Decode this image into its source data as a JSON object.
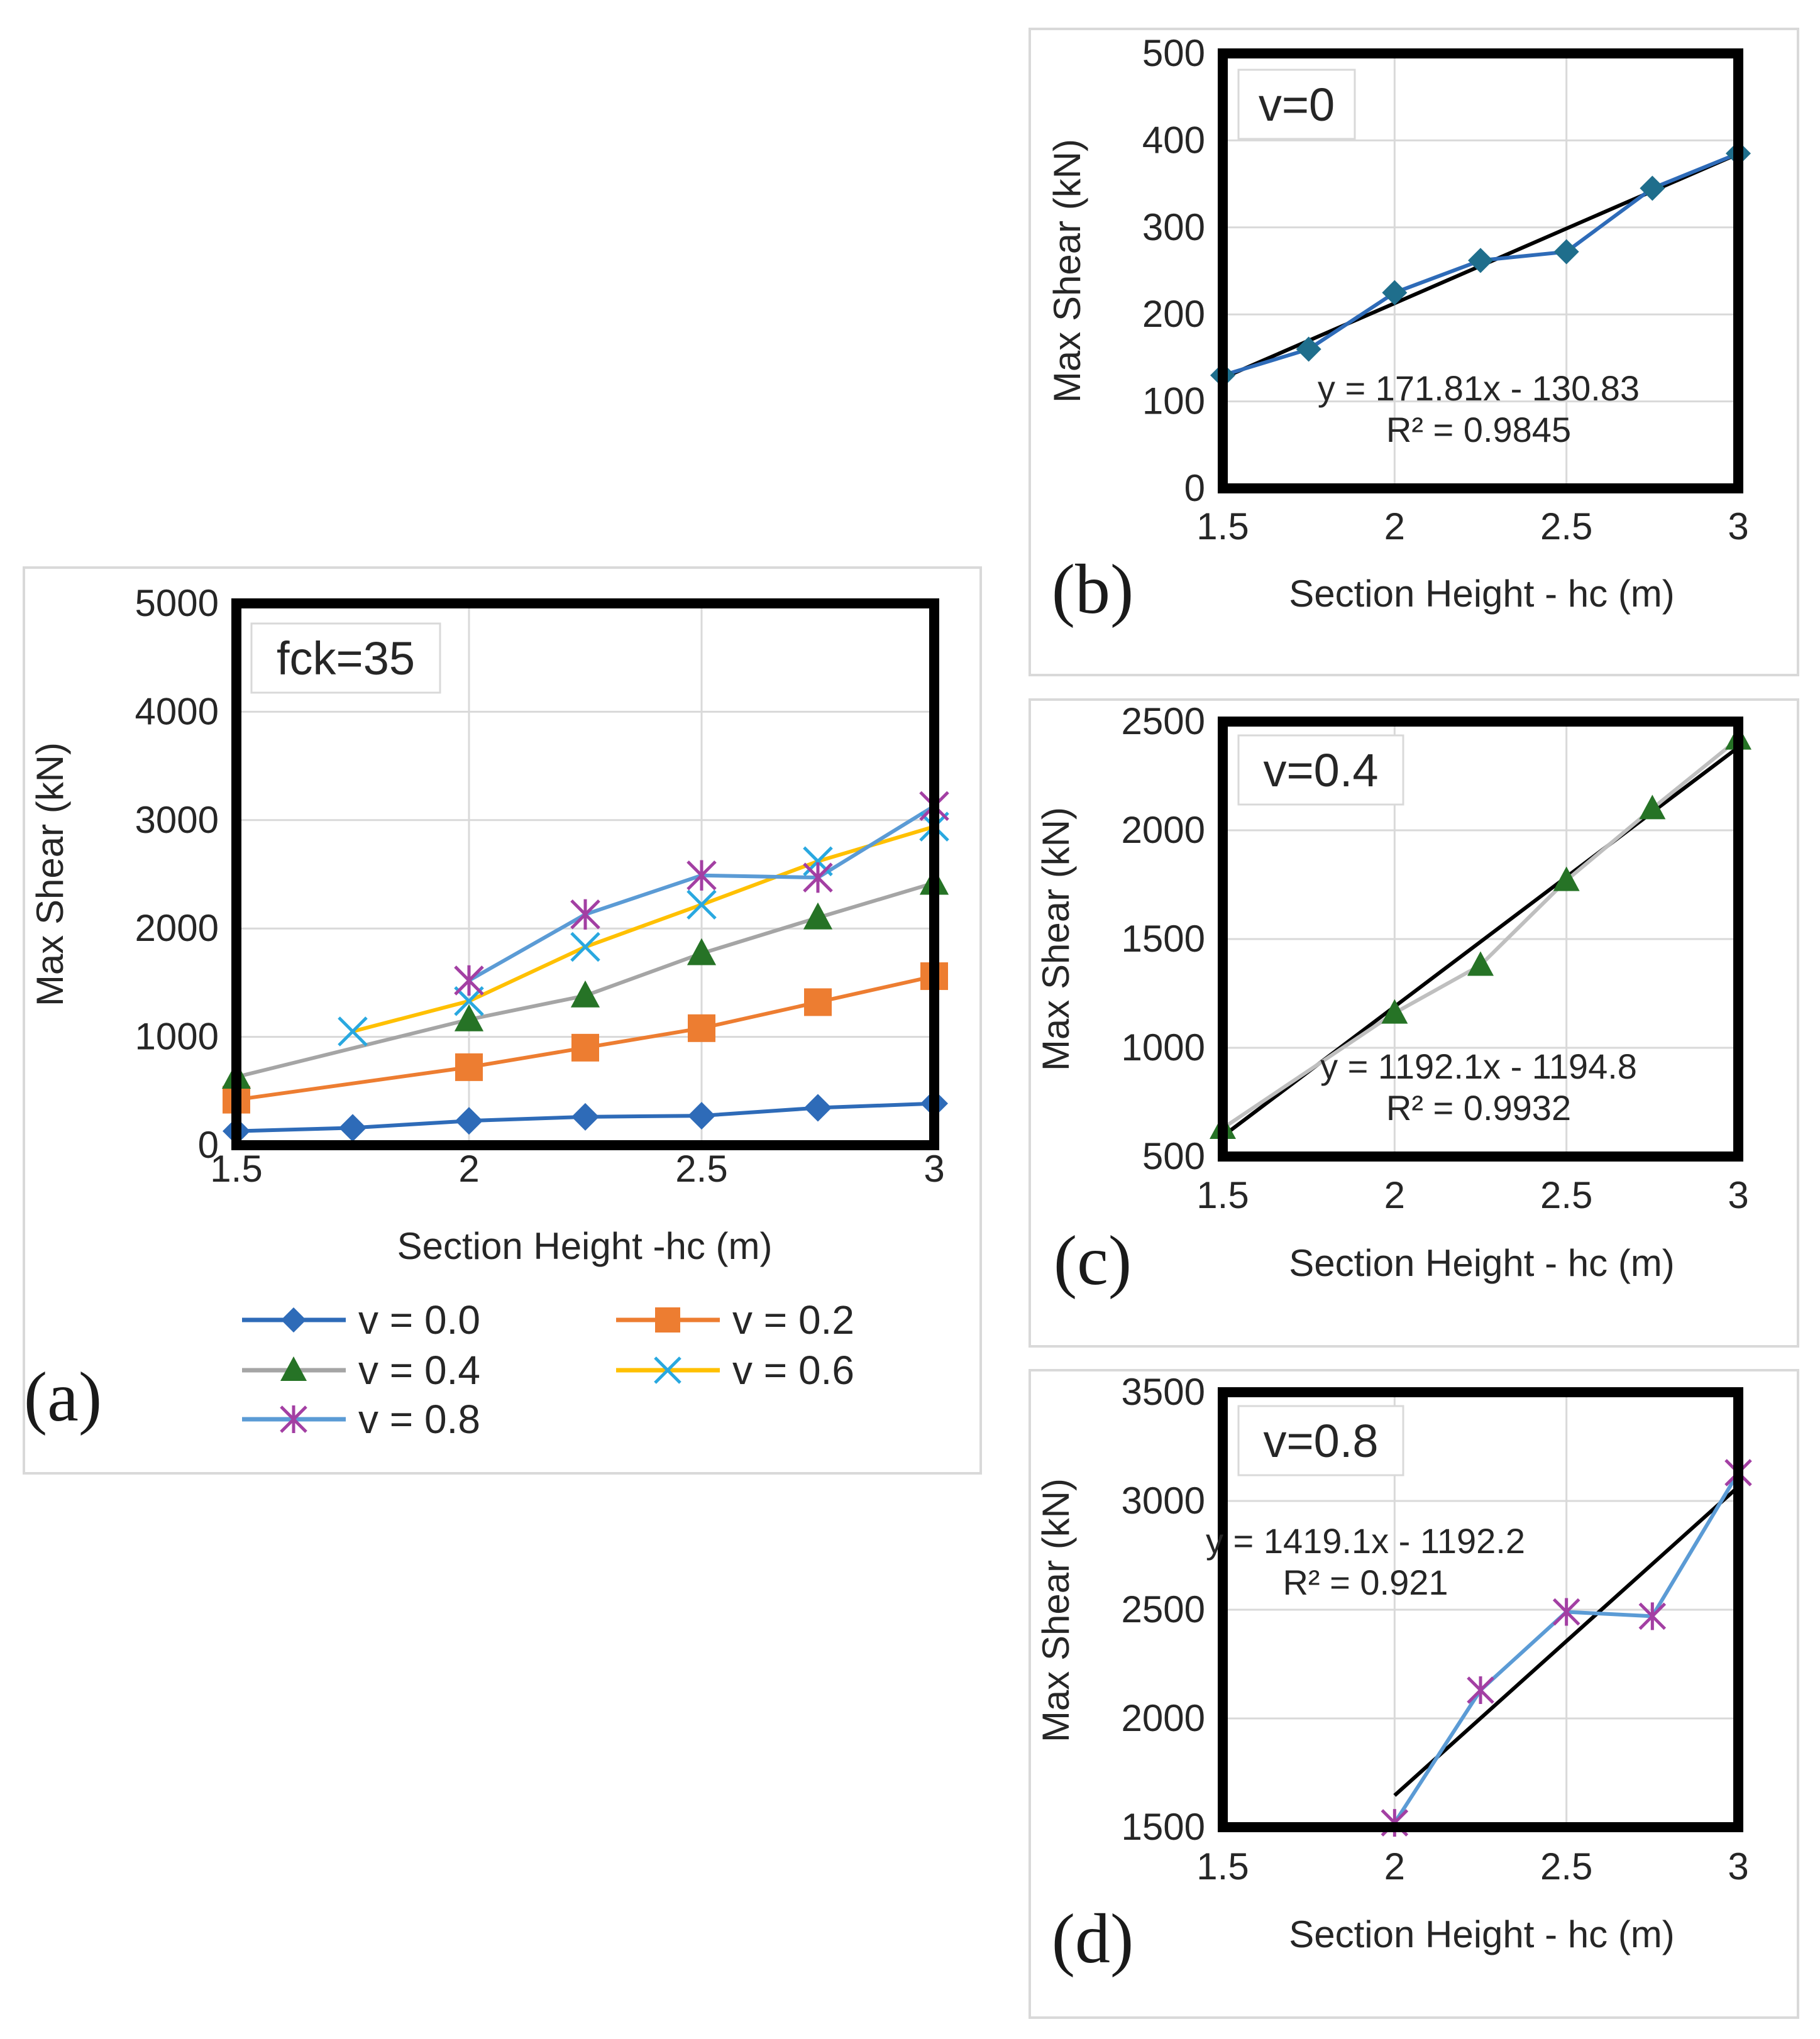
{
  "chart_data": [
    {
      "id": "a",
      "type": "line",
      "panel_label": "(a)",
      "annotation": "fck=35",
      "xlabel": "Section Height -hc (m)",
      "ylabel": "Max Shear (kN)",
      "xlim": [
        1.5,
        3
      ],
      "ylim": [
        0,
        5000
      ],
      "xticks": [
        1.5,
        2,
        2.5,
        3
      ],
      "yticks": [
        0,
        1000,
        2000,
        3000,
        4000,
        5000
      ],
      "xtick_labels": [
        "1.5",
        "2",
        "2.5",
        "3"
      ],
      "ytick_labels": [
        "0",
        "1000",
        "2000",
        "3000",
        "4000",
        "5000"
      ],
      "grid": true,
      "legend_position": "bottom",
      "series": [
        {
          "name": "v = 0.0",
          "color": "#2E6BB8",
          "marker": "diamond",
          "x": [
            1.5,
            1.75,
            2,
            2.25,
            2.5,
            2.75,
            3
          ],
          "values": [
            130,
            160,
            225,
            262,
            272,
            345,
            385
          ]
        },
        {
          "name": "v = 0.2",
          "color": "#ED7D31",
          "marker": "square",
          "x": [
            1.5,
            2,
            2.25,
            2.5,
            2.75,
            3
          ],
          "values": [
            420,
            720,
            900,
            1080,
            1320,
            1560
          ]
        },
        {
          "name": "v = 0.4",
          "color": "#A5A5A5",
          "marker": "triangle",
          "marker_color": "#267326",
          "x": [
            1.5,
            2,
            2.25,
            2.5,
            2.75,
            3
          ],
          "values": [
            630,
            1160,
            1380,
            1770,
            2100,
            2420
          ]
        },
        {
          "name": "v = 0.6",
          "color": "#FFC000",
          "marker": "x",
          "marker_color": "#29A8E0",
          "x": [
            1.75,
            2,
            2.25,
            2.5,
            2.75,
            3
          ],
          "values": [
            1050,
            1330,
            1830,
            2220,
            2620,
            2940
          ]
        },
        {
          "name": "v = 0.8",
          "color": "#5B9BD5",
          "marker": "star",
          "marker_color": "#A33FA3",
          "x": [
            2,
            2.25,
            2.5,
            2.75,
            3
          ],
          "values": [
            1520,
            2130,
            2490,
            2470,
            3130
          ]
        }
      ]
    },
    {
      "id": "b",
      "type": "line",
      "panel_label": "(b)",
      "annotation": "v=0",
      "xlabel": "Section Height - hc (m)",
      "ylabel": "Max Shear (kN)",
      "xlim": [
        1.5,
        3
      ],
      "ylim": [
        0,
        500
      ],
      "xticks": [
        1.5,
        2,
        2.5,
        3
      ],
      "yticks": [
        0,
        100,
        200,
        300,
        400,
        500
      ],
      "xtick_labels": [
        "1.5",
        "2",
        "2.5",
        "3"
      ],
      "ytick_labels": [
        "0",
        "100",
        "200",
        "300",
        "400",
        "500"
      ],
      "grid": true,
      "series": [
        {
          "name": "v = 0.0",
          "color": "#2E6BB8",
          "marker": "diamond",
          "marker_color": "#1F6E8C",
          "x": [
            1.5,
            1.75,
            2,
            2.25,
            2.5,
            2.75,
            3
          ],
          "values": [
            130,
            160,
            225,
            262,
            272,
            345,
            385
          ]
        }
      ],
      "trendline": {
        "slope": 171.81,
        "intercept": -130.83,
        "x_range": [
          1.5,
          3
        ],
        "color": "#000000"
      },
      "equation": "y = 171.81x - 130.83",
      "r_squared": "R² = 0.9845"
    },
    {
      "id": "c",
      "type": "line",
      "panel_label": "(c)",
      "annotation": "v=0.4",
      "xlabel": "Section Height - hc (m)",
      "ylabel": "Max Shear (kN)",
      "xlim": [
        1.5,
        3
      ],
      "ylim": [
        500,
        2500
      ],
      "xticks": [
        1.5,
        2,
        2.5,
        3
      ],
      "yticks": [
        500,
        1000,
        1500,
        2000,
        2500
      ],
      "xtick_labels": [
        "1.5",
        "2",
        "2.5",
        "3"
      ],
      "ytick_labels": [
        "500",
        "1000",
        "1500",
        "2000",
        "2500"
      ],
      "grid": true,
      "series": [
        {
          "name": "v = 0.4",
          "color": "#BFBFBF",
          "marker": "triangle",
          "marker_color": "#267326",
          "x": [
            1.5,
            2,
            2.25,
            2.5,
            2.75,
            3
          ],
          "values": [
            630,
            1160,
            1380,
            1770,
            2100,
            2420
          ]
        }
      ],
      "trendline": {
        "slope": 1192.1,
        "intercept": -1194.8,
        "x_range": [
          1.5,
          3
        ],
        "color": "#000000"
      },
      "equation": "y = 1192.1x - 1194.8",
      "r_squared": "R² = 0.9932"
    },
    {
      "id": "d",
      "type": "line",
      "panel_label": "(d)",
      "annotation": "v=0.8",
      "xlabel": "Section Height - hc (m)",
      "ylabel": "Max Shear (kN)",
      "xlim": [
        1.5,
        3
      ],
      "ylim": [
        1500,
        3500
      ],
      "xticks": [
        1.5,
        2,
        2.5,
        3
      ],
      "yticks": [
        1500,
        2000,
        2500,
        3000,
        3500
      ],
      "xtick_labels": [
        "1.5",
        "2",
        "2.5",
        "3"
      ],
      "ytick_labels": [
        "1500",
        "2000",
        "2500",
        "3000",
        "3500"
      ],
      "grid": true,
      "series": [
        {
          "name": "v = 0.8",
          "color": "#5B9BD5",
          "marker": "star",
          "marker_color": "#A33FA3",
          "x": [
            2,
            2.25,
            2.5,
            2.75,
            3
          ],
          "values": [
            1520,
            2130,
            2490,
            2470,
            3130
          ]
        }
      ],
      "trendline": {
        "slope": 1419.1,
        "intercept": -1192.2,
        "x_range": [
          2,
          3
        ],
        "color": "#000000"
      },
      "equation": "y = 1419.1x - 1192.2",
      "r_squared": "R² = 0.921"
    }
  ]
}
